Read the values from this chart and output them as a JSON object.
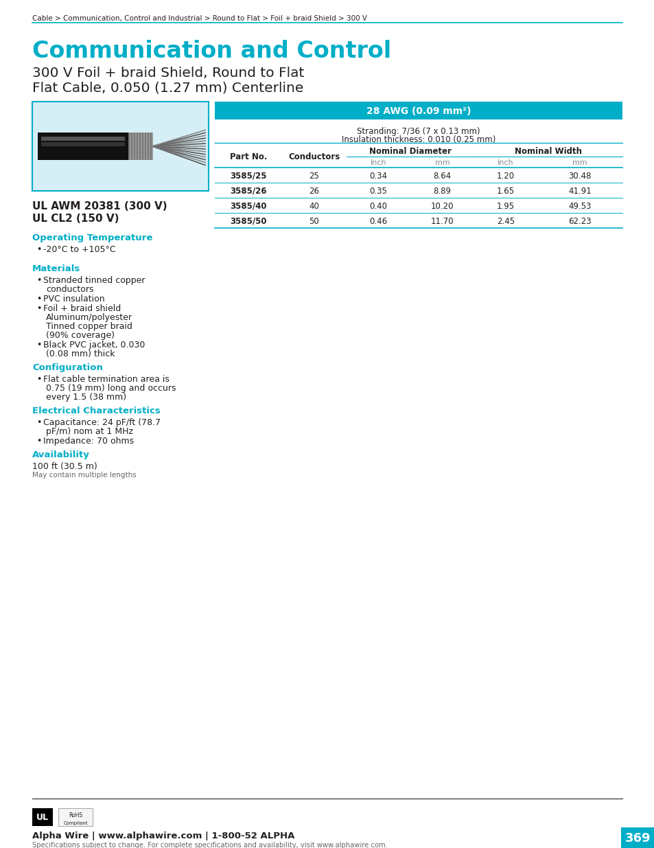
{
  "page_bg": "#ffffff",
  "cyan": "#00aec7",
  "table_header_bg": "#00aec7",
  "breadcrumb": "Cable > Communication, Control and Industrial > Round to Flat > Foil + braid Shield > 300 V",
  "main_title": "Communication and Control",
  "subtitle1": "300 V Foil + braid Shield, Round to Flat",
  "subtitle2": "Flat Cable, 0.050 (1.27 mm) Centerline",
  "ul_line1": "UL AWM 20381 (300 V)",
  "ul_line2": "UL CL2 (150 V)",
  "section_op": "Operating Temperature",
  "section_mat": "Materials",
  "section_conf": "Configuration",
  "section_elec": "Electrical Characteristics",
  "section_avail": "Availability",
  "avail_line1": "100 ft (30.5 m)",
  "avail_line2": "May contain multiple lengths",
  "awg_header": "28 AWG (0.09 mm²)",
  "stranding_line1": "Stranding: 7/36 (7 x 0.13 mm)",
  "stranding_line2": "Insulation thickness: 0.010 (0.25 mm)",
  "table_data": [
    [
      "3585/25",
      "25",
      "0.34",
      "8.64",
      "1.20",
      "30.48"
    ],
    [
      "3585/26",
      "26",
      "0.35",
      "8.89",
      "1.65",
      "41.91"
    ],
    [
      "3585/40",
      "40",
      "0.40",
      "10.20",
      "1.95",
      "49.53"
    ],
    [
      "3585/50",
      "50",
      "0.46",
      "11.70",
      "2.45",
      "62.23"
    ]
  ],
  "footer_company": "Alpha Wire | www.alphawire.com | 1-800-52 ALPHA",
  "footer_sub": "Specifications subject to change. For complete specifications and availability, visit www.alphawire.com.",
  "page_num": "369",
  "page_num_bg": "#00aec7",
  "image_box_color": "#d6eff7",
  "text_color": "#231f20",
  "gray_text": "#666666",
  "light_gray": "#888888"
}
